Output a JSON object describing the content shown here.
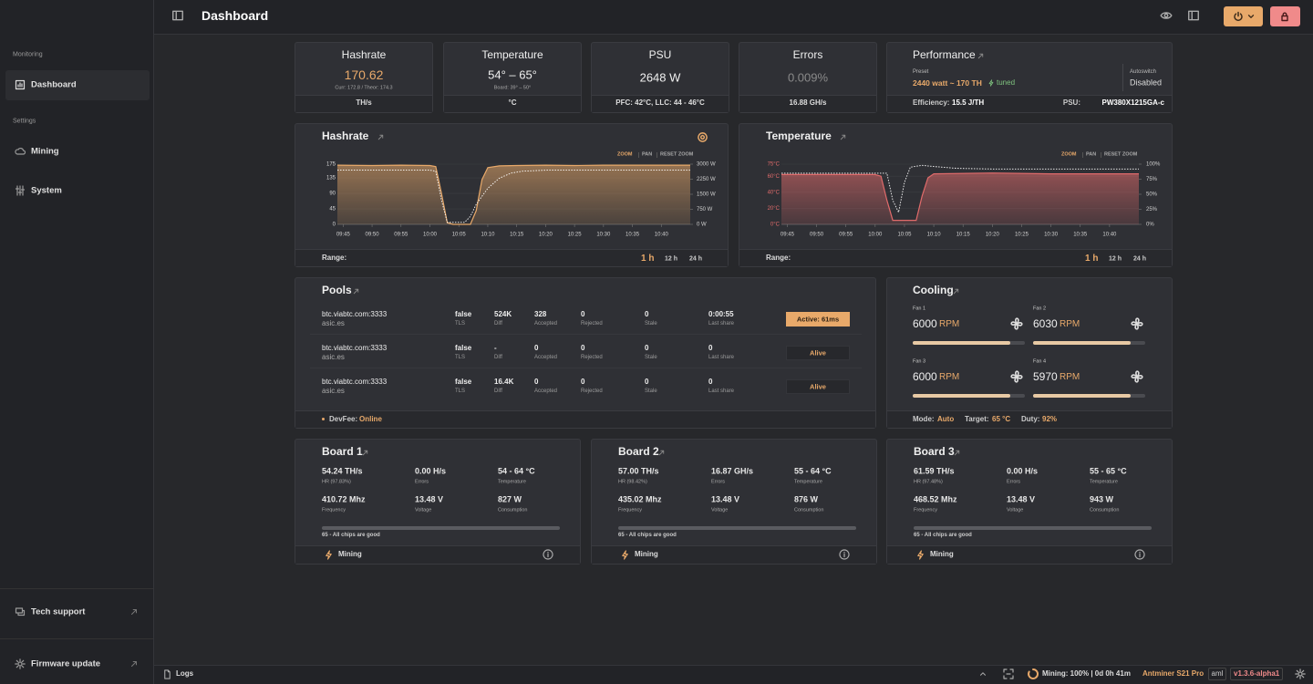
{
  "sidebar": {
    "monitoring": "Monitoring",
    "dashboard": "Dashboard",
    "settings": "Settings",
    "mining": "Mining",
    "system": "System",
    "tech_support": "Tech support",
    "firmware_update": "Firmware update"
  },
  "header": {
    "title": "Dashboard"
  },
  "summary": {
    "hashrate": {
      "title": "Hashrate",
      "value": "170.62",
      "detail": "Curr: 172.8 / Theor: 174.3",
      "footer": "TH/s"
    },
    "temperature": {
      "title": "Temperature",
      "value": "54° – 65°",
      "detail": "Board: 39° – 50°",
      "footer": "°C"
    },
    "psu": {
      "title": "PSU",
      "value": "2648 W",
      "footer": "PFC: 42°C, LLC: 44 - 46°C"
    },
    "errors": {
      "title": "Errors",
      "value": "0.009%",
      "footer": "16.88 GH/s"
    },
    "performance": {
      "title": "Performance",
      "preset_label": "Preset",
      "preset": "2440 watt ~ 170 TH",
      "tuned": "tuned",
      "autoswitch_label": "Autoswitch",
      "autoswitch": "Disabled",
      "efficiency_label": "Efficiency:",
      "efficiency": "15.5 J/TH",
      "psu_label": "PSU:",
      "psu": "PW380X1215GA-c"
    }
  },
  "chart_data": [
    {
      "type": "line",
      "title": "Hashrate",
      "controls": [
        "ZOOM",
        "PAN",
        "RESET ZOOM"
      ],
      "range_label": "Range:",
      "ranges": [
        "1 h",
        "12 h",
        "24 h"
      ],
      "xlim": [
        "09:44",
        "10:45"
      ],
      "xticks": [
        "09:45",
        "09:50",
        "09:55",
        "10:00",
        "10:05",
        "10:10",
        "10:15",
        "10:20",
        "10:25",
        "10:30",
        "10:35",
        "10:40"
      ],
      "ylim": [
        0,
        175
      ],
      "yticks": [
        0,
        45,
        90,
        135,
        175
      ],
      "ytick_color": "#d8d8d8",
      "y2lim": [
        0,
        3000
      ],
      "y2ticks": [
        {
          "value": 0,
          "label": "0 W"
        },
        {
          "value": 750,
          "label": "750 W"
        },
        {
          "value": 1500,
          "label": "1500 W"
        },
        {
          "value": 2250,
          "label": "2250 W"
        },
        {
          "value": 3000,
          "label": "3000 W"
        }
      ],
      "series": [
        {
          "color": "#e8a96a",
          "x": [
            "09:44",
            "09:50",
            "09:55",
            "10:00",
            "10:01",
            "10:02",
            "10:03",
            "10:04",
            "10:06",
            "10:07",
            "10:08",
            "10:09",
            "10:10",
            "10:12",
            "10:15",
            "10:20",
            "10:25",
            "10:30",
            "10:35",
            "10:40",
            "10:45"
          ],
          "values": [
            172,
            171,
            172,
            171,
            168,
            90,
            5,
            0,
            0,
            0,
            40,
            130,
            165,
            170,
            171,
            172,
            171,
            172,
            172,
            172,
            172
          ]
        },
        {
          "color": "#ffffff",
          "axis": "y2",
          "x": [
            "09:44",
            "10:00",
            "10:01",
            "10:02",
            "10:03",
            "10:06",
            "10:07",
            "10:08",
            "10:10",
            "10:12",
            "10:14",
            "10:16",
            "10:20",
            "10:45"
          ],
          "values": [
            2700,
            2700,
            2650,
            1200,
            100,
            100,
            400,
            1000,
            1800,
            2300,
            2550,
            2650,
            2700,
            2700
          ]
        }
      ]
    },
    {
      "type": "line",
      "title": "Temperature",
      "controls": [
        "ZOOM",
        "PAN",
        "RESET ZOOM"
      ],
      "range_label": "Range:",
      "ranges": [
        "1 h",
        "12 h",
        "24 h"
      ],
      "xlim": [
        "09:44",
        "10:45"
      ],
      "xticks": [
        "09:45",
        "09:50",
        "09:55",
        "10:00",
        "10:05",
        "10:10",
        "10:15",
        "10:20",
        "10:25",
        "10:30",
        "10:35",
        "10:40"
      ],
      "ylim": [
        0,
        75
      ],
      "yticks": [
        {
          "value": 0,
          "label": "0°C"
        },
        {
          "value": 20,
          "label": "20°C"
        },
        {
          "value": 40,
          "label": "40°C"
        },
        {
          "value": 60,
          "label": "60°C"
        },
        {
          "value": 75,
          "label": "75°C"
        }
      ],
      "ytick_color": "#e06b6b",
      "y2lim": [
        0,
        100
      ],
      "y2ticks": [
        {
          "value": 0,
          "label": "0%"
        },
        {
          "value": 25,
          "label": "25%"
        },
        {
          "value": 50,
          "label": "50%"
        },
        {
          "value": 75,
          "label": "75%"
        },
        {
          "value": 100,
          "label": "100%"
        }
      ],
      "series": [
        {
          "color": "#e06b6b",
          "x": [
            "09:44",
            "09:50",
            "10:00",
            "10:01",
            "10:02",
            "10:03",
            "10:07",
            "10:08",
            "10:09",
            "10:10",
            "10:20",
            "10:30",
            "10:45"
          ],
          "values": [
            62,
            62,
            62,
            60,
            30,
            5,
            5,
            35,
            58,
            63,
            64,
            63,
            63
          ]
        },
        {
          "color": "#ffffff",
          "axis": "y2",
          "x": [
            "09:44",
            "10:00",
            "10:02",
            "10:03",
            "10:04",
            "10:05",
            "10:06",
            "10:08",
            "10:10",
            "10:14",
            "10:20",
            "10:45"
          ],
          "values": [
            85,
            85,
            85,
            40,
            20,
            70,
            95,
            98,
            96,
            93,
            92,
            92
          ]
        }
      ]
    }
  ],
  "pools": {
    "title": "Pools",
    "labels": {
      "tls": "TLS",
      "diff": "Diff",
      "accepted": "Accepted",
      "rejected": "Rejected",
      "stale": "Stale",
      "last_share": "Last share"
    },
    "rows": [
      {
        "url": "btc.viabtc.com:3333",
        "user": "asic.es",
        "tls": "false",
        "diff": "524K",
        "accepted": "328",
        "rejected": "0",
        "stale": "0",
        "last_share": "0:00:55",
        "status": "Active: 61ms",
        "active": true
      },
      {
        "url": "btc.viabtc.com:3333",
        "user": "asic.es",
        "tls": "false",
        "diff": "-",
        "accepted": "0",
        "rejected": "0",
        "stale": "0",
        "last_share": "0",
        "status": "Alive",
        "active": false
      },
      {
        "url": "btc.viabtc.com:3333",
        "user": "asic.es",
        "tls": "false",
        "diff": "16.4K",
        "accepted": "0",
        "rejected": "0",
        "stale": "0",
        "last_share": "0",
        "status": "Alive",
        "active": false
      }
    ],
    "devfee_label": "DevFee:",
    "devfee": "Online"
  },
  "cooling": {
    "title": "Cooling",
    "unit": "RPM",
    "fans": [
      {
        "label": "Fan 1",
        "rpm": "6000"
      },
      {
        "label": "Fan 2",
        "rpm": "6030"
      },
      {
        "label": "Fan 3",
        "rpm": "6000"
      },
      {
        "label": "Fan 4",
        "rpm": "5970"
      }
    ],
    "mode_label": "Mode:",
    "mode": "Auto",
    "target_label": "Target:",
    "target": "65 °C",
    "duty_label": "Duty:",
    "duty": "92%"
  },
  "boards": {
    "labels": {
      "errors": "Errors",
      "temperature": "Temperature",
      "frequency": "Frequency",
      "voltage": "Voltage",
      "consumption": "Consumption"
    },
    "items": [
      {
        "title": "Board 1",
        "hashrate": "54.24 TH/s",
        "hr": "HR (97.83%)",
        "errors": "0.00 H/s",
        "temperature": "54 - 64 °C",
        "frequency": "410.72 Mhz",
        "voltage": "13.48 V",
        "consumption": "827 W",
        "chips": "65 - All chips are good",
        "status": "Mining"
      },
      {
        "title": "Board 2",
        "hashrate": "57.00 TH/s",
        "hr": "HR (98.42%)",
        "errors": "16.87 GH/s",
        "temperature": "55 - 64 °C",
        "frequency": "435.02 Mhz",
        "voltage": "13.48 V",
        "consumption": "876 W",
        "chips": "65 - All chips are good",
        "status": "Mining"
      },
      {
        "title": "Board 3",
        "hashrate": "61.59 TH/s",
        "hr": "HR (97.48%)",
        "errors": "0.00 H/s",
        "temperature": "55 - 65 °C",
        "frequency": "468.52 Mhz",
        "voltage": "13.48 V",
        "consumption": "943 W",
        "chips": "65 - All chips are good",
        "status": "Mining"
      }
    ]
  },
  "status_bar": {
    "logs": "Logs",
    "mining": "Mining: 100% | 0d 0h 41m",
    "model": "Antminer S21 Pro",
    "tag": "aml",
    "version": "v1.3.6-alpha1"
  }
}
